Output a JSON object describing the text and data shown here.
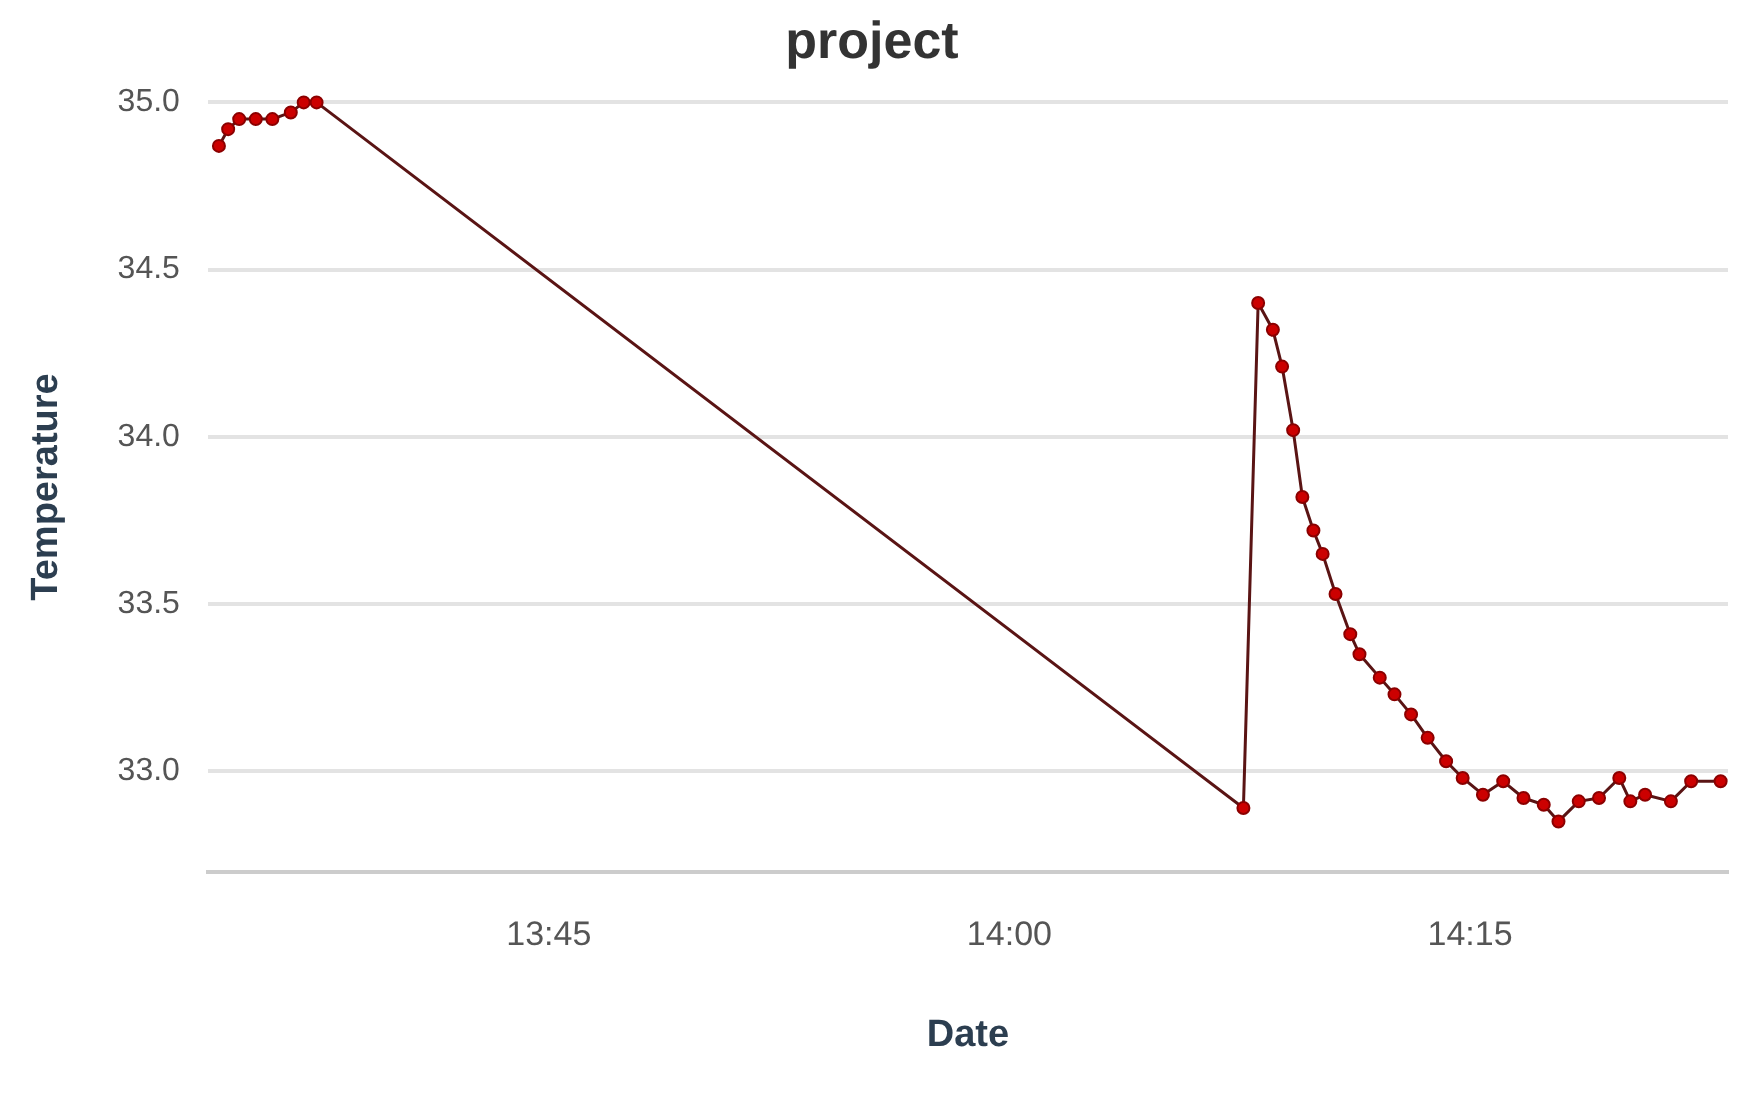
{
  "chart_data": {
    "type": "line",
    "title": "project",
    "xlabel": "Date",
    "ylabel": "Temperature",
    "xlim": [
      13.565,
      14.39
    ],
    "xticks": [
      {
        "value": 13.75,
        "label": "13:45"
      },
      {
        "value": 14,
        "label": "14:00"
      },
      {
        "value": 14.25,
        "label": "14:15"
      }
    ],
    "ylim": [
      32.7,
      35.0
    ],
    "yticks": [
      {
        "value": 33,
        "label": "33.0"
      },
      {
        "value": 33.5,
        "label": "33.5"
      },
      {
        "value": 34,
        "label": "34.0"
      },
      {
        "value": 34.5,
        "label": "34.5"
      },
      {
        "value": 35,
        "label": "35.0"
      }
    ],
    "grid": "y",
    "legend": false,
    "marker": "circle",
    "line_style": "solid",
    "series": [
      {
        "color": "#cc0000",
        "x": [
          13.571,
          13.576,
          13.582,
          13.591,
          13.6,
          13.61,
          13.617,
          13.624,
          14.127,
          14.135,
          14.143,
          14.148,
          14.154,
          14.159,
          14.165,
          14.17,
          14.177,
          14.185,
          14.19,
          14.201,
          14.209,
          14.218,
          14.227,
          14.237,
          14.246,
          14.257,
          14.268,
          14.279,
          14.29,
          14.298,
          14.309,
          14.32,
          14.331,
          14.337,
          14.345,
          14.359,
          14.37,
          14.386
        ],
        "values": [
          34.87,
          34.92,
          34.95,
          34.95,
          34.95,
          34.97,
          35.0,
          35.0,
          32.89,
          34.4,
          34.32,
          34.21,
          34.02,
          33.82,
          33.72,
          33.65,
          33.53,
          33.41,
          33.35,
          33.28,
          33.23,
          33.17,
          33.1,
          33.03,
          32.98,
          32.93,
          32.97,
          32.92,
          32.9,
          32.85,
          32.91,
          32.92,
          32.98,
          32.91,
          32.93,
          32.91,
          32.97,
          32.97
        ]
      }
    ]
  }
}
